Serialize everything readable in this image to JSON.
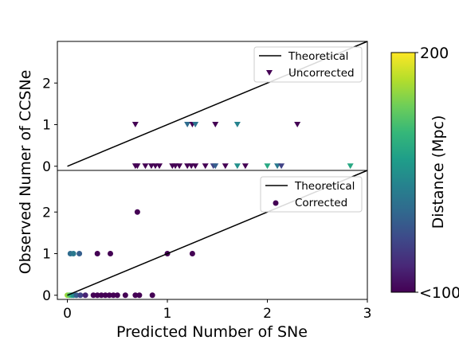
{
  "colors": {
    "line": "#000000",
    "viridis": [
      "#440154",
      "#482878",
      "#3e4989",
      "#31688e",
      "#26828e",
      "#1f9e89",
      "#35b779",
      "#6ece58",
      "#b5de2b",
      "#fde725"
    ]
  },
  "colorbar": {
    "label": "Distance (Mpc)",
    "top_label": "200",
    "bottom_label": "<100",
    "min": 100,
    "max": 200
  },
  "chart_data": [
    {
      "type": "scatter",
      "panel": "top",
      "ylabel": "Observed Numer of CCSNe",
      "xlim": [
        -0.1,
        3.0
      ],
      "ylim": [
        -0.1,
        3.0
      ],
      "yticks": [
        "0",
        "1",
        "2"
      ],
      "ytick_values": [
        0,
        1,
        2
      ],
      "legend_position": "upper right",
      "legend": [
        {
          "label": "Theoretical",
          "kind": "line"
        },
        {
          "label": "Uncorrected",
          "kind": "triangle"
        }
      ],
      "theoretical_line": {
        "x": [
          0,
          3
        ],
        "y": [
          0,
          3
        ]
      },
      "marker": "triangle-down",
      "points": [
        {
          "x": 0.68,
          "y": 1,
          "d": 100
        },
        {
          "x": 1.2,
          "y": 1,
          "d": 135
        },
        {
          "x": 1.25,
          "y": 1,
          "d": 100
        },
        {
          "x": 1.28,
          "y": 1,
          "d": 138
        },
        {
          "x": 1.48,
          "y": 1,
          "d": 100
        },
        {
          "x": 1.7,
          "y": 1,
          "d": 145
        },
        {
          "x": 2.3,
          "y": 1,
          "d": 100
        },
        {
          "x": 0.68,
          "y": 0,
          "d": 100
        },
        {
          "x": 0.7,
          "y": 0,
          "d": 100
        },
        {
          "x": 0.78,
          "y": 0,
          "d": 100
        },
        {
          "x": 0.84,
          "y": 0,
          "d": 100
        },
        {
          "x": 0.88,
          "y": 0,
          "d": 100
        },
        {
          "x": 0.92,
          "y": 0,
          "d": 100
        },
        {
          "x": 1.05,
          "y": 0,
          "d": 100
        },
        {
          "x": 1.08,
          "y": 0,
          "d": 100
        },
        {
          "x": 1.12,
          "y": 0,
          "d": 100
        },
        {
          "x": 1.2,
          "y": 0,
          "d": 100
        },
        {
          "x": 1.24,
          "y": 0,
          "d": 100
        },
        {
          "x": 1.28,
          "y": 0,
          "d": 100
        },
        {
          "x": 1.38,
          "y": 0,
          "d": 100
        },
        {
          "x": 1.46,
          "y": 0,
          "d": 120
        },
        {
          "x": 1.48,
          "y": 0,
          "d": 130
        },
        {
          "x": 1.58,
          "y": 0,
          "d": 100
        },
        {
          "x": 1.7,
          "y": 0,
          "d": 150
        },
        {
          "x": 1.78,
          "y": 0,
          "d": 100
        },
        {
          "x": 2.0,
          "y": 0,
          "d": 160
        },
        {
          "x": 2.1,
          "y": 0,
          "d": 140
        },
        {
          "x": 2.14,
          "y": 0,
          "d": 120
        },
        {
          "x": 2.83,
          "y": 0,
          "d": 160
        }
      ]
    },
    {
      "type": "scatter",
      "panel": "bottom",
      "xlabel": "Predicted Number of SNe",
      "xlim": [
        -0.1,
        3.0
      ],
      "ylim": [
        -0.1,
        3.0
      ],
      "xticks": [
        "0",
        "1",
        "2",
        "3"
      ],
      "xtick_values": [
        0,
        1,
        2,
        3
      ],
      "yticks": [
        "0",
        "1",
        "2"
      ],
      "ytick_values": [
        0,
        1,
        2
      ],
      "legend_position": "upper right",
      "legend": [
        {
          "label": "Theoretical",
          "kind": "line"
        },
        {
          "label": "Corrected",
          "kind": "circle"
        }
      ],
      "theoretical_line": {
        "x": [
          0,
          3
        ],
        "y": [
          0,
          3
        ]
      },
      "marker": "circle",
      "points": [
        {
          "x": 0.7,
          "y": 2,
          "d": 100
        },
        {
          "x": 0.03,
          "y": 1,
          "d": 135
        },
        {
          "x": 0.06,
          "y": 1,
          "d": 140
        },
        {
          "x": 0.12,
          "y": 1,
          "d": 130
        },
        {
          "x": 0.3,
          "y": 1,
          "d": 100
        },
        {
          "x": 0.43,
          "y": 1,
          "d": 100
        },
        {
          "x": 1.0,
          "y": 1,
          "d": 100
        },
        {
          "x": 1.25,
          "y": 1,
          "d": 100
        },
        {
          "x": 0.0,
          "y": 0,
          "d": 185
        },
        {
          "x": 0.02,
          "y": 0,
          "d": 175
        },
        {
          "x": 0.04,
          "y": 0,
          "d": 165
        },
        {
          "x": 0.06,
          "y": 0,
          "d": 150
        },
        {
          "x": 0.09,
          "y": 0,
          "d": 130
        },
        {
          "x": 0.13,
          "y": 0,
          "d": 120
        },
        {
          "x": 0.18,
          "y": 0,
          "d": 110
        },
        {
          "x": 0.26,
          "y": 0,
          "d": 100
        },
        {
          "x": 0.3,
          "y": 0,
          "d": 100
        },
        {
          "x": 0.34,
          "y": 0,
          "d": 100
        },
        {
          "x": 0.38,
          "y": 0,
          "d": 100
        },
        {
          "x": 0.42,
          "y": 0,
          "d": 100
        },
        {
          "x": 0.46,
          "y": 0,
          "d": 100
        },
        {
          "x": 0.5,
          "y": 0,
          "d": 100
        },
        {
          "x": 0.58,
          "y": 0,
          "d": 100
        },
        {
          "x": 0.68,
          "y": 0,
          "d": 100
        },
        {
          "x": 0.72,
          "y": 0,
          "d": 100
        },
        {
          "x": 0.85,
          "y": 0,
          "d": 100
        }
      ]
    }
  ]
}
